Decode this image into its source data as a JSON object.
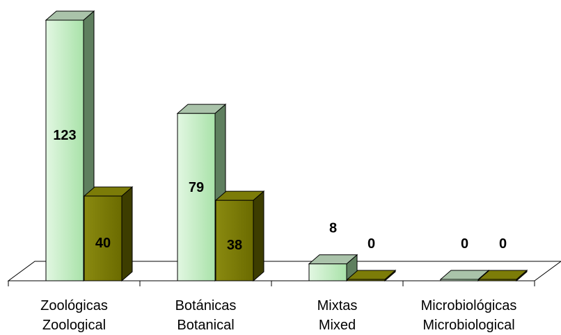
{
  "chart_data": {
    "type": "bar",
    "title": "",
    "xlabel": "",
    "ylabel": "",
    "grid": false,
    "legend": "none",
    "ylim": [
      0,
      123
    ],
    "categories": [
      {
        "line1": "Zoológicas",
        "line2": "Zoological"
      },
      {
        "line1": "Botánicas",
        "line2": "Botanical"
      },
      {
        "line1": "Mixtas",
        "line2": "Mixed"
      },
      {
        "line1": "Microbiológicas",
        "line2": "Microbiological"
      }
    ],
    "series": [
      {
        "values": [
          123,
          79,
          8,
          0
        ],
        "color_front_light": "#e2f7e2",
        "color_front_dark": "#a9e2a9",
        "color_top": "#aac3aa",
        "color_side": "#5f7f5f",
        "labels": [
          "123",
          "79",
          "8",
          "0"
        ]
      },
      {
        "values": [
          40,
          38,
          0,
          0
        ],
        "color_front_light": "#8a8a10",
        "color_front_dark": "#6b6b00",
        "color_top": "#7c7c08",
        "color_side": "#3d3d00",
        "labels": [
          "40",
          "38",
          "0",
          "0"
        ]
      }
    ]
  }
}
